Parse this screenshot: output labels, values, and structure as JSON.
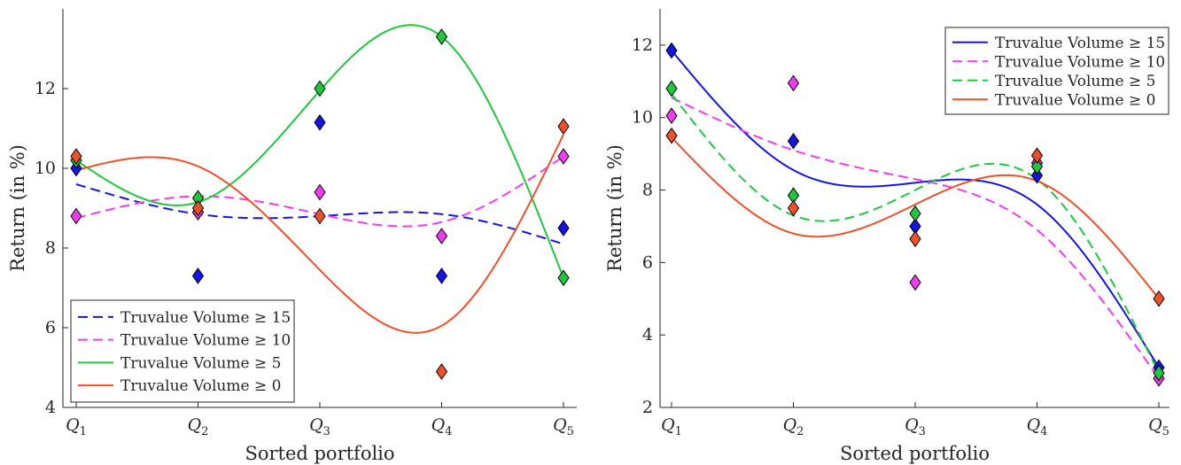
{
  "chart_data": [
    {
      "type": "scatter",
      "xlabel": "Sorted portfolio",
      "ylabel": "Return (in %)",
      "categories": [
        "Q1",
        "Q2",
        "Q3",
        "Q4",
        "Q5"
      ],
      "ylim": [
        4,
        14
      ],
      "yticks": [
        4,
        6,
        8,
        10,
        12
      ],
      "legend_position": "bottom-left",
      "series": [
        {
          "name": "Truvalue Volume ≥ 15",
          "color": "#1414e6",
          "line_style": "dashed",
          "points": [
            10.0,
            8.9,
            11.15,
            7.3,
            8.5
          ],
          "second_point": [
            null,
            7.3,
            null,
            null,
            null
          ],
          "fit": [
            9.6,
            8.85,
            8.8,
            8.85,
            8.1
          ]
        },
        {
          "name": "Truvalue Volume ≥ 10",
          "color": "#f03cf0",
          "line_style": "dashed",
          "points": [
            8.8,
            8.9,
            9.4,
            8.3,
            10.3
          ],
          "fit": [
            8.75,
            9.3,
            8.85,
            8.65,
            10.3
          ]
        },
        {
          "name": "Truvalue Volume ≥ 5",
          "color": "#1ec83c",
          "line_style": "solid",
          "points": [
            10.2,
            9.25,
            12.0,
            13.3,
            7.25
          ],
          "fit": [
            10.2,
            9.15,
            11.95,
            13.3,
            7.25
          ]
        },
        {
          "name": "Truvalue Volume ≥ 0",
          "color": "#f05028",
          "line_style": "solid",
          "points": [
            10.3,
            9.0,
            8.8,
            4.9,
            11.05
          ],
          "fit": [
            9.95,
            10.05,
            7.45,
            6.05,
            10.85
          ]
        }
      ]
    },
    {
      "type": "scatter",
      "xlabel": "Sorted portfolio",
      "ylabel": "Return (in %)",
      "categories": [
        "Q1",
        "Q2",
        "Q3",
        "Q4",
        "Q5"
      ],
      "ylim": [
        2,
        13
      ],
      "yticks": [
        2,
        4,
        6,
        8,
        10,
        12
      ],
      "legend_position": "top-right",
      "series": [
        {
          "name": "Truvalue Volume ≥ 15",
          "color": "#1414e6",
          "line_style": "solid",
          "points": [
            11.85,
            9.35,
            7.0,
            8.4,
            3.1
          ],
          "fit": [
            11.85,
            8.55,
            8.2,
            7.6,
            3.1
          ]
        },
        {
          "name": "Truvalue Volume ≥ 10",
          "color": "#f03cf0",
          "line_style": "dashed",
          "points": [
            10.05,
            10.95,
            5.45,
            8.75,
            2.8
          ],
          "fit": [
            10.55,
            9.1,
            8.3,
            6.9,
            2.8
          ]
        },
        {
          "name": "Truvalue Volume ≥ 5",
          "color": "#1ec83c",
          "line_style": "dashed",
          "points": [
            10.8,
            7.85,
            7.35,
            8.65,
            2.95
          ],
          "fit": [
            10.65,
            7.3,
            8.0,
            8.3,
            2.95
          ]
        },
        {
          "name": "Truvalue Volume ≥ 0",
          "color": "#f05028",
          "line_style": "solid",
          "points": [
            9.5,
            7.5,
            6.65,
            8.95,
            5.0
          ],
          "fit": [
            9.45,
            6.8,
            7.6,
            8.25,
            5.0
          ]
        }
      ]
    }
  ]
}
